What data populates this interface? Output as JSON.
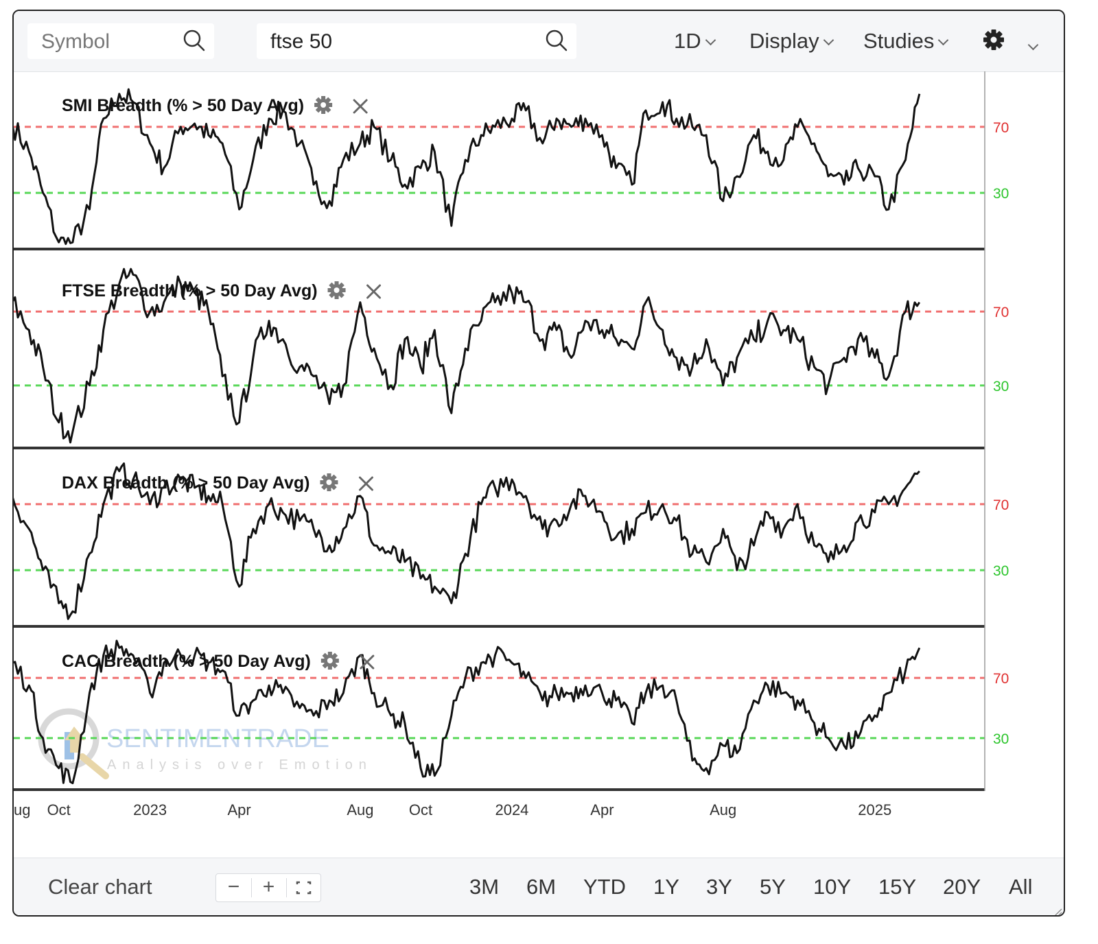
{
  "toolbar": {
    "symbol_placeholder": "Symbol",
    "search_value": "ftse 50",
    "interval_label": "1D",
    "display_label": "Display",
    "studies_label": "Studies",
    "settings_icon": "gear-icon"
  },
  "footer": {
    "clear_label": "Clear chart",
    "zoom_out_label": "−",
    "zoom_in_label": "+",
    "ranges": [
      "3M",
      "6M",
      "YTD",
      "1Y",
      "3Y",
      "5Y",
      "10Y",
      "15Y",
      "20Y",
      "All"
    ]
  },
  "watermark": {
    "name": "SENTIMENTRADE",
    "tagline": "Analysis over Emotion"
  },
  "colors": {
    "line": "#111111",
    "upper_ref": "#f07070",
    "lower_ref": "#5ad85a",
    "upper_label": "#e03030",
    "lower_label": "#2cc52c"
  },
  "chart_data": [
    {
      "type": "line",
      "title": "SMI Breadth (% > 50 Day Avg)",
      "reference_lines": [
        70,
        30
      ],
      "ylim": [
        -2,
        102
      ],
      "x": [
        "2022-08-15",
        "2022-09-01",
        "2022-09-15",
        "2022-10-01",
        "2022-10-15",
        "2022-11-01",
        "2022-11-15",
        "2022-12-01",
        "2022-12-15",
        "2023-01-01",
        "2023-01-15",
        "2023-02-01",
        "2023-02-15",
        "2023-03-01",
        "2023-03-15",
        "2023-04-01",
        "2023-04-15",
        "2023-05-01",
        "2023-05-15",
        "2023-06-01",
        "2023-06-15",
        "2023-07-01",
        "2023-07-15",
        "2023-08-01",
        "2023-08-15",
        "2023-09-01",
        "2023-09-15",
        "2023-10-01",
        "2023-10-15",
        "2023-11-01",
        "2023-11-15",
        "2023-12-01",
        "2023-12-15",
        "2024-01-01",
        "2024-01-15",
        "2024-02-01",
        "2024-02-15",
        "2024-03-01",
        "2024-03-15",
        "2024-04-01",
        "2024-04-15",
        "2024-05-01",
        "2024-05-15",
        "2024-06-01",
        "2024-06-15",
        "2024-07-01",
        "2024-07-15",
        "2024-08-01",
        "2024-08-15",
        "2024-09-01",
        "2024-09-15",
        "2024-10-01",
        "2024-10-15",
        "2024-11-01",
        "2024-11-15",
        "2024-12-01",
        "2024-12-15",
        "2025-01-01",
        "2025-01-15",
        "2025-02-01",
        "2025-02-15"
      ],
      "values": [
        72,
        55,
        30,
        0,
        0,
        20,
        75,
        90,
        85,
        60,
        45,
        70,
        72,
        65,
        60,
        20,
        50,
        75,
        80,
        60,
        35,
        25,
        50,
        60,
        70,
        50,
        35,
        45,
        55,
        10,
        50,
        65,
        70,
        75,
        80,
        60,
        75,
        70,
        75,
        65,
        45,
        35,
        80,
        85,
        75,
        70,
        65,
        25,
        40,
        65,
        55,
        50,
        70,
        60,
        40,
        35,
        45,
        40,
        20,
        50,
        90
      ]
    },
    {
      "type": "line",
      "title": "FTSE Breadth (% > 50 Day Avg)",
      "reference_lines": [
        70,
        30
      ],
      "ylim": [
        -2,
        102
      ],
      "x": [
        "2022-08-15",
        "2022-09-01",
        "2022-09-15",
        "2022-10-01",
        "2022-10-15",
        "2022-11-01",
        "2022-11-15",
        "2022-12-01",
        "2022-12-15",
        "2023-01-01",
        "2023-01-15",
        "2023-02-01",
        "2023-02-15",
        "2023-03-01",
        "2023-03-15",
        "2023-04-01",
        "2023-04-15",
        "2023-05-01",
        "2023-05-15",
        "2023-06-01",
        "2023-06-15",
        "2023-07-01",
        "2023-07-15",
        "2023-08-01",
        "2023-08-15",
        "2023-09-01",
        "2023-09-15",
        "2023-10-01",
        "2023-10-15",
        "2023-11-01",
        "2023-11-15",
        "2023-12-01",
        "2023-12-15",
        "2024-01-01",
        "2024-01-15",
        "2024-02-01",
        "2024-02-15",
        "2024-03-01",
        "2024-03-15",
        "2024-04-01",
        "2024-04-15",
        "2024-05-01",
        "2024-05-15",
        "2024-06-01",
        "2024-06-15",
        "2024-07-01",
        "2024-07-15",
        "2024-08-01",
        "2024-08-15",
        "2024-09-01",
        "2024-09-15",
        "2024-10-01",
        "2024-10-15",
        "2024-11-01",
        "2024-11-15",
        "2024-12-01",
        "2024-12-15",
        "2025-01-01",
        "2025-01-15",
        "2025-02-01",
        "2025-02-15"
      ],
      "values": [
        75,
        60,
        40,
        10,
        5,
        30,
        60,
        85,
        90,
        70,
        75,
        85,
        80,
        70,
        35,
        10,
        45,
        65,
        55,
        40,
        35,
        20,
        30,
        75,
        50,
        30,
        55,
        40,
        60,
        15,
        50,
        65,
        75,
        80,
        75,
        55,
        60,
        45,
        65,
        60,
        55,
        50,
        75,
        60,
        45,
        40,
        55,
        30,
        45,
        55,
        65,
        60,
        55,
        40,
        30,
        45,
        55,
        45,
        35,
        70,
        75
      ]
    },
    {
      "type": "line",
      "title": "DAX Breadth (% > 50 Day Avg)",
      "reference_lines": [
        70,
        30
      ],
      "ylim": [
        -2,
        102
      ],
      "x": [
        "2022-08-15",
        "2022-09-01",
        "2022-09-15",
        "2022-10-01",
        "2022-10-15",
        "2022-11-01",
        "2022-11-15",
        "2022-12-01",
        "2022-12-15",
        "2023-01-01",
        "2023-01-15",
        "2023-02-01",
        "2023-02-15",
        "2023-03-01",
        "2023-03-15",
        "2023-04-01",
        "2023-04-15",
        "2023-05-01",
        "2023-05-15",
        "2023-06-01",
        "2023-06-15",
        "2023-07-01",
        "2023-07-15",
        "2023-08-01",
        "2023-08-15",
        "2023-09-01",
        "2023-09-15",
        "2023-10-01",
        "2023-10-15",
        "2023-11-01",
        "2023-11-15",
        "2023-12-01",
        "2023-12-15",
        "2024-01-01",
        "2024-01-15",
        "2024-02-01",
        "2024-02-15",
        "2024-03-01",
        "2024-03-15",
        "2024-04-01",
        "2024-04-15",
        "2024-05-01",
        "2024-05-15",
        "2024-06-01",
        "2024-06-15",
        "2024-07-01",
        "2024-07-15",
        "2024-08-01",
        "2024-08-15",
        "2024-09-01",
        "2024-09-15",
        "2024-10-01",
        "2024-10-15",
        "2024-11-01",
        "2024-11-15",
        "2024-12-01",
        "2024-12-15",
        "2025-01-01",
        "2025-01-15",
        "2025-02-01",
        "2025-02-15"
      ],
      "values": [
        75,
        55,
        30,
        10,
        5,
        40,
        70,
        90,
        85,
        70,
        80,
        85,
        80,
        75,
        70,
        20,
        55,
        70,
        65,
        60,
        55,
        45,
        55,
        75,
        45,
        40,
        35,
        25,
        20,
        10,
        40,
        70,
        80,
        85,
        75,
        55,
        60,
        70,
        75,
        65,
        50,
        55,
        65,
        70,
        60,
        40,
        35,
        55,
        30,
        45,
        65,
        55,
        70,
        45,
        35,
        45,
        60,
        65,
        70,
        80,
        90
      ]
    },
    {
      "type": "line",
      "title": "CAC Breadth (% > 50 Day Avg)",
      "reference_lines": [
        70,
        30
      ],
      "ylim": [
        -2,
        102
      ],
      "x": [
        "2022-08-15",
        "2022-09-01",
        "2022-09-15",
        "2022-10-01",
        "2022-10-15",
        "2022-11-01",
        "2022-11-15",
        "2022-12-01",
        "2022-12-15",
        "2023-01-01",
        "2023-01-15",
        "2023-02-01",
        "2023-02-15",
        "2023-03-01",
        "2023-03-15",
        "2023-04-01",
        "2023-04-15",
        "2023-05-01",
        "2023-05-15",
        "2023-06-01",
        "2023-06-15",
        "2023-07-01",
        "2023-07-15",
        "2023-08-01",
        "2023-08-15",
        "2023-09-01",
        "2023-09-15",
        "2023-10-01",
        "2023-10-15",
        "2023-11-01",
        "2023-11-15",
        "2023-12-01",
        "2023-12-15",
        "2024-01-01",
        "2024-01-15",
        "2024-02-01",
        "2024-02-15",
        "2024-03-01",
        "2024-03-15",
        "2024-04-01",
        "2024-04-15",
        "2024-05-01",
        "2024-05-15",
        "2024-06-01",
        "2024-06-15",
        "2024-07-01",
        "2024-07-15",
        "2024-08-01",
        "2024-08-15",
        "2024-09-01",
        "2024-09-15",
        "2024-10-01",
        "2024-10-15",
        "2024-11-01",
        "2024-11-15",
        "2024-12-01",
        "2024-12-15",
        "2025-01-01",
        "2025-01-15",
        "2025-02-01",
        "2025-02-15"
      ],
      "values": [
        80,
        65,
        30,
        10,
        0,
        60,
        85,
        90,
        85,
        60,
        80,
        85,
        85,
        80,
        75,
        45,
        55,
        65,
        60,
        50,
        45,
        55,
        60,
        85,
        60,
        45,
        40,
        10,
        5,
        45,
        70,
        80,
        85,
        80,
        70,
        55,
        60,
        60,
        65,
        60,
        55,
        40,
        60,
        65,
        55,
        15,
        10,
        25,
        20,
        55,
        65,
        60,
        55,
        40,
        30,
        25,
        30,
        45,
        60,
        75,
        90
      ]
    }
  ],
  "y_labels": {
    "upper": "70",
    "lower": "30"
  },
  "x_axis": {
    "ticks": [
      {
        "label": "ug",
        "date": "2022-08-15"
      },
      {
        "label": "Oct",
        "date": "2022-10-01"
      },
      {
        "label": "2023",
        "date": "2023-01-01"
      },
      {
        "label": "Apr",
        "date": "2023-04-01"
      },
      {
        "label": "Aug",
        "date": "2023-08-01"
      },
      {
        "label": "Oct",
        "date": "2023-10-01"
      },
      {
        "label": "2024",
        "date": "2024-01-01"
      },
      {
        "label": "Apr",
        "date": "2024-04-01"
      },
      {
        "label": "Aug",
        "date": "2024-08-01"
      },
      {
        "label": "2025",
        "date": "2025-01-01"
      }
    ]
  }
}
